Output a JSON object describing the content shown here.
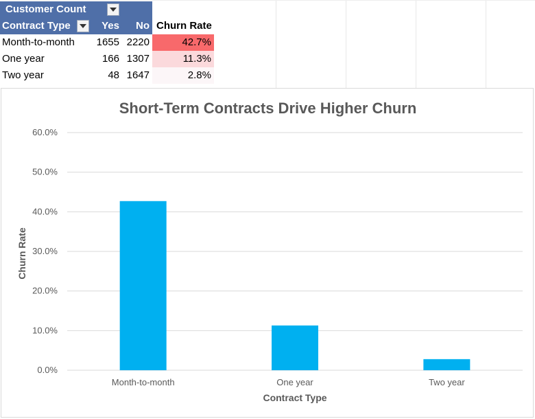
{
  "pivot": {
    "title": "Customer Count",
    "row_header": "Contract Type",
    "col_yes": "Yes",
    "col_no": "No",
    "col_rate": "Churn Rate",
    "rows": [
      {
        "type": "Month-to-month",
        "yes": "1655",
        "no": "2220",
        "rate": "42.7%",
        "rate_bg": "#f8696b"
      },
      {
        "type": "One year",
        "yes": "166",
        "no": "1307",
        "rate": "11.3%",
        "rate_bg": "#fbd9dc"
      },
      {
        "type": "Two year",
        "yes": "48",
        "no": "1647",
        "rate": "2.8%",
        "rate_bg": "#fcf6f8"
      }
    ]
  },
  "colors": {
    "header_bg": "#4f6fa8",
    "bar": "#00b0f0",
    "gridline": "#d9d9d9",
    "text_gray": "#595959"
  },
  "chart_data": {
    "type": "bar",
    "title": "Short-Term Contracts Drive Higher Churn",
    "xlabel": "Contract Type",
    "ylabel": "Churn Rate",
    "categories": [
      "Month-to-month",
      "One year",
      "Two year"
    ],
    "values": [
      42.7,
      11.3,
      2.8
    ],
    "ylim": [
      0,
      60
    ],
    "yticks": [
      "0.0%",
      "10.0%",
      "20.0%",
      "30.0%",
      "40.0%",
      "50.0%",
      "60.0%"
    ],
    "grid": true,
    "legend": "none"
  }
}
